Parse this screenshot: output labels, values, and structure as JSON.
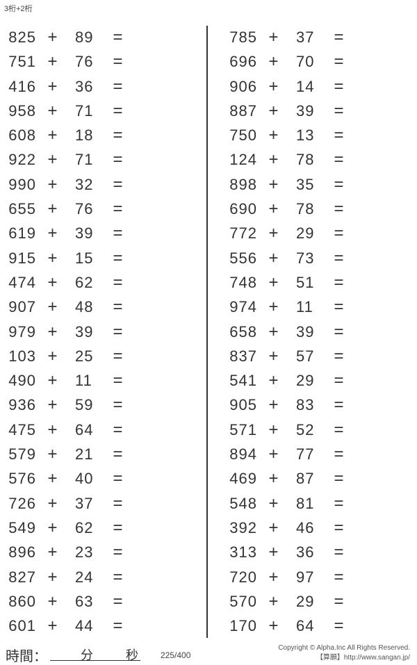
{
  "title": "3桁+2桁",
  "operator": "+",
  "equals": "=",
  "left_problems": [
    [
      "825",
      "89"
    ],
    [
      "751",
      "76"
    ],
    [
      "416",
      "36"
    ],
    [
      "958",
      "71"
    ],
    [
      "608",
      "18"
    ],
    [
      "922",
      "71"
    ],
    [
      "990",
      "32"
    ],
    [
      "655",
      "76"
    ],
    [
      "619",
      "39"
    ],
    [
      "915",
      "15"
    ],
    [
      "474",
      "62"
    ],
    [
      "907",
      "48"
    ],
    [
      "979",
      "39"
    ],
    [
      "103",
      "25"
    ],
    [
      "490",
      "11"
    ],
    [
      "936",
      "59"
    ],
    [
      "475",
      "64"
    ],
    [
      "579",
      "21"
    ],
    [
      "576",
      "40"
    ],
    [
      "726",
      "37"
    ],
    [
      "549",
      "62"
    ],
    [
      "896",
      "23"
    ],
    [
      "827",
      "24"
    ],
    [
      "860",
      "63"
    ],
    [
      "601",
      "44"
    ]
  ],
  "right_problems": [
    [
      "785",
      "37"
    ],
    [
      "696",
      "70"
    ],
    [
      "906",
      "14"
    ],
    [
      "887",
      "39"
    ],
    [
      "750",
      "13"
    ],
    [
      "124",
      "78"
    ],
    [
      "898",
      "35"
    ],
    [
      "690",
      "78"
    ],
    [
      "772",
      "29"
    ],
    [
      "556",
      "73"
    ],
    [
      "748",
      "51"
    ],
    [
      "974",
      "11"
    ],
    [
      "658",
      "39"
    ],
    [
      "837",
      "57"
    ],
    [
      "541",
      "29"
    ],
    [
      "905",
      "83"
    ],
    [
      "571",
      "52"
    ],
    [
      "894",
      "77"
    ],
    [
      "469",
      "87"
    ],
    [
      "548",
      "81"
    ],
    [
      "392",
      "46"
    ],
    [
      "313",
      "36"
    ],
    [
      "720",
      "97"
    ],
    [
      "570",
      "29"
    ],
    [
      "170",
      "64"
    ]
  ],
  "footer": {
    "time_label": "時間：",
    "minutes_label": "分",
    "seconds_label": "秒",
    "page": "225/400",
    "copyright": "Copyright © Alpha.Inc All Rights Reserved.",
    "site": "【算願】http://www.sangan.jp/"
  }
}
